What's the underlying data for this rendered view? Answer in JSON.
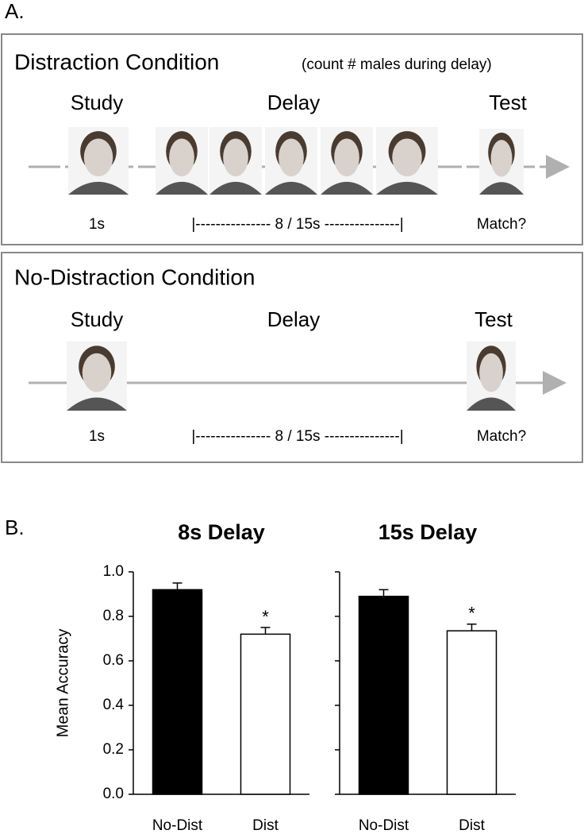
{
  "panel_a": {
    "label": "A.",
    "distraction": {
      "title": "Distraction Condition",
      "subtitle": "(count # males during delay)",
      "study": "Study",
      "delay": "Delay",
      "test": "Test",
      "study_time": "1s",
      "delay_time": "|--------------- 8 / 15s ---------------|",
      "test_prompt": "Match?"
    },
    "no_distraction": {
      "title": "No-Distraction Condition",
      "study": "Study",
      "delay": "Delay",
      "test": "Test",
      "study_time": "1s",
      "delay_time": "|--------------- 8 / 15s ---------------|",
      "test_prompt": "Match?"
    }
  },
  "panel_b_label": "B.",
  "chart_data": [
    {
      "type": "bar",
      "title": "8s Delay",
      "y_label": "Mean Accuracy",
      "categories": [
        "No-Dist",
        "Dist"
      ],
      "values": [
        0.92,
        0.72
      ],
      "errors": [
        0.03,
        0.03
      ],
      "colors": [
        "#000000",
        "#ffffff"
      ],
      "significance_marks": [
        null,
        "*"
      ],
      "ylim": [
        0,
        1
      ],
      "yticks": [
        {
          "value": 0,
          "label": "0.0"
        },
        0.2,
        0.4,
        0.6,
        0.8,
        {
          "value": 1,
          "label": "1.0"
        }
      ],
      "show_ytick_labels": true
    },
    {
      "type": "bar",
      "title": "15s Delay",
      "categories": [
        "No-Dist",
        "Dist"
      ],
      "values": [
        0.89,
        0.735
      ],
      "errors": [
        0.03,
        0.03
      ],
      "colors": [
        "#000000",
        "#ffffff"
      ],
      "significance_marks": [
        null,
        "*"
      ],
      "ylim": [
        0,
        1
      ],
      "yticks": [
        0,
        0.2,
        0.4,
        0.6,
        0.8,
        1
      ],
      "show_ytick_labels": false
    }
  ]
}
